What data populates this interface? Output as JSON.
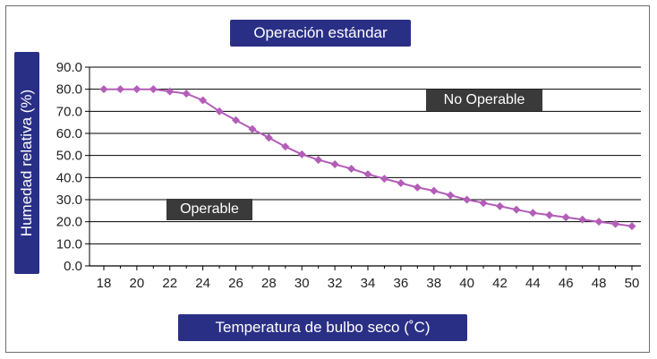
{
  "chart_data": {
    "type": "line",
    "title": "Operación estándar",
    "xlabel": "Temperatura de bulbo seco (˚C)",
    "ylabel": "Humedad relativa (%)",
    "xlim": [
      18,
      50
    ],
    "ylim": [
      0,
      90
    ],
    "x_ticks": [
      "18",
      "20",
      "22",
      "24",
      "26",
      "28",
      "30",
      "32",
      "34",
      "36",
      "38",
      "40",
      "42",
      "44",
      "46",
      "48",
      "50"
    ],
    "y_ticks": [
      "0.0",
      "10.0",
      "20.0",
      "30.0",
      "40.0",
      "50.0",
      "60.0",
      "70.0",
      "80.0",
      "90.0"
    ],
    "grid": true,
    "line_color": "#b35db8",
    "marker": "diamond",
    "series": [
      {
        "x": [
          18,
          19,
          20,
          21,
          22,
          23,
          24,
          25,
          26,
          27,
          28,
          29,
          30,
          31,
          32,
          33,
          34,
          35,
          36,
          37,
          38,
          39,
          40,
          41,
          42,
          43,
          44,
          45,
          46,
          47,
          48,
          49,
          50
        ],
        "values": [
          80,
          80,
          80,
          80,
          79,
          78,
          75,
          70,
          66,
          62,
          58,
          54,
          50.5,
          48,
          46,
          44,
          41.5,
          39.5,
          37.5,
          35.5,
          34,
          32,
          30,
          28.5,
          27,
          25.5,
          24,
          23,
          22,
          21,
          20,
          19,
          18
        ]
      }
    ],
    "annotations": [
      "No Operable",
      "Operable"
    ]
  }
}
